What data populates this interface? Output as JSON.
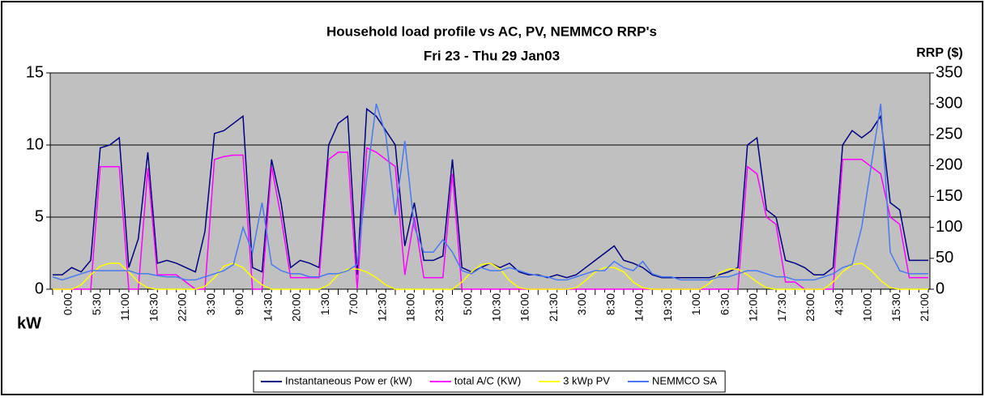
{
  "chart_data": {
    "type": "line",
    "title": "Household load profile vs AC, PV, NEMMCO RRP's",
    "subtitle": "Fri 23 - Thu 29 Jan03",
    "y_label": "kW",
    "y2_label": "RRP ($)",
    "categories": [
      "0:00",
      null,
      null,
      "5:30",
      null,
      null,
      "11:00",
      null,
      null,
      "16:30",
      null,
      null,
      "22:00",
      null,
      null,
      "3:30",
      null,
      null,
      "9:00",
      null,
      null,
      "14:30",
      null,
      null,
      "20:00",
      null,
      null,
      "1:30",
      null,
      null,
      "7:00",
      null,
      null,
      "12:30",
      null,
      null,
      "18:00",
      null,
      null,
      "23:30",
      null,
      null,
      "5:00",
      null,
      null,
      "10:30",
      null,
      null,
      "16:00",
      null,
      null,
      "21:30",
      null,
      null,
      "3:00",
      null,
      null,
      "8:30",
      null,
      null,
      "14:00",
      null,
      null,
      "19:30",
      null,
      null,
      "1:00",
      null,
      null,
      "6:30",
      null,
      null,
      "12:00",
      null,
      null,
      "17:30",
      null,
      null,
      "23:00",
      null,
      null,
      "4:30",
      null,
      null,
      "10:00",
      null,
      null,
      "15:30",
      null,
      null,
      "21:00",
      null,
      null
    ],
    "series": [
      {
        "name": "Instantaneous Pow er (kW)",
        "color": "#000080",
        "values": [
          1,
          1,
          1.5,
          1.2,
          2,
          9.8,
          10,
          10.5,
          1.5,
          3.5,
          9.5,
          1.8,
          2,
          1.8,
          1.5,
          1.2,
          4,
          10.8,
          11,
          11.5,
          12,
          1.5,
          1.2,
          9,
          6,
          1.5,
          2,
          1.8,
          1.5,
          10,
          11.5,
          12,
          1,
          12.5,
          12,
          11,
          10,
          3,
          6,
          2,
          2,
          2.3,
          9,
          1.5,
          1.2,
          1.5,
          1.8,
          1.5,
          1.8,
          1.2,
          1,
          1,
          0.8,
          1,
          0.8,
          1,
          1.5,
          2,
          2.5,
          3,
          2,
          1.8,
          1.5,
          1,
          0.8,
          0.8,
          0.8,
          0.8,
          0.8,
          0.8,
          1,
          1.2,
          1.5,
          10,
          10.5,
          5.5,
          5,
          2,
          1.8,
          1.5,
          1,
          1,
          1.5,
          10,
          11,
          10.5,
          11,
          12,
          6,
          5.5,
          2,
          2,
          2
        ]
      },
      {
        "name": "total A/C (KW)",
        "color": "#ff00ff",
        "values": [
          0,
          0,
          0,
          0,
          0,
          8.5,
          8.5,
          8.5,
          0,
          0,
          8.4,
          1,
          1,
          1,
          0.5,
          0,
          0,
          9,
          9.2,
          9.3,
          9.3,
          0,
          0,
          8.5,
          5,
          0.8,
          0.8,
          0.8,
          0.8,
          9,
          9.5,
          9.5,
          0,
          9.8,
          9.5,
          9,
          8.5,
          1,
          5,
          0.8,
          0.8,
          0.8,
          8,
          0,
          0,
          0,
          0,
          0,
          0,
          0,
          0,
          0,
          0,
          0,
          0,
          0,
          0,
          0,
          0,
          0,
          0,
          0,
          0,
          0,
          0,
          0,
          0,
          0,
          0,
          0,
          0,
          0,
          0,
          8.5,
          8,
          5,
          4.5,
          0.5,
          0.5,
          0,
          0,
          0,
          0,
          9,
          9,
          9,
          8.5,
          8,
          5,
          4.5,
          0.8,
          0.8,
          0.8
        ]
      },
      {
        "name": "3 kWp PV",
        "color": "#ffff00",
        "values": [
          0,
          0,
          0,
          0.3,
          1,
          1.6,
          1.8,
          1.8,
          1.2,
          0.5,
          0.1,
          0,
          0,
          0,
          0,
          0,
          0.2,
          0.8,
          1.6,
          1.8,
          1.5,
          0.8,
          0.3,
          0,
          0,
          0,
          0,
          0,
          0,
          0.3,
          1,
          1.4,
          1.4,
          1.2,
          0.8,
          0.3,
          0,
          0,
          0,
          0,
          0,
          0,
          0,
          0.5,
          1.2,
          1.7,
          1.8,
          1.4,
          0.6,
          0.1,
          0,
          0,
          0,
          0,
          0,
          0.1,
          0.6,
          1.2,
          1.5,
          1.5,
          1.2,
          0.5,
          0.1,
          0,
          0,
          0,
          0,
          0,
          0,
          0.4,
          1.1,
          1.4,
          1.4,
          1,
          0.5,
          0.1,
          0,
          0,
          0,
          0,
          0,
          0,
          0.5,
          1.2,
          1.7,
          1.8,
          1.3,
          0.6,
          0.1,
          0,
          0,
          0,
          0
        ]
      },
      {
        "name": "NEMMCO SA",
        "color": "#4a78f0",
        "axis": "y2",
        "values": [
          20,
          15,
          20,
          25,
          30,
          30,
          30,
          30,
          30,
          25,
          25,
          22,
          20,
          20,
          15,
          15,
          20,
          25,
          30,
          40,
          100,
          60,
          140,
          40,
          30,
          25,
          25,
          20,
          20,
          25,
          25,
          30,
          40,
          180,
          300,
          250,
          120,
          240,
          100,
          60,
          60,
          80,
          60,
          30,
          25,
          35,
          30,
          30,
          35,
          30,
          25,
          22,
          20,
          15,
          15,
          20,
          25,
          30,
          30,
          45,
          35,
          30,
          45,
          25,
          20,
          20,
          15,
          15,
          15,
          15,
          20,
          20,
          25,
          30,
          30,
          25,
          20,
          20,
          15,
          15,
          15,
          20,
          25,
          35,
          40,
          100,
          200,
          300,
          60,
          30,
          25,
          25,
          25
        ]
      }
    ],
    "ylim": [
      0,
      15
    ],
    "yticks": [
      0,
      5,
      10,
      15
    ],
    "y2lim": [
      0,
      350
    ],
    "y2ticks": [
      0,
      50,
      100,
      150,
      200,
      250,
      300,
      350
    ],
    "grid": true,
    "legend": "bottom"
  }
}
